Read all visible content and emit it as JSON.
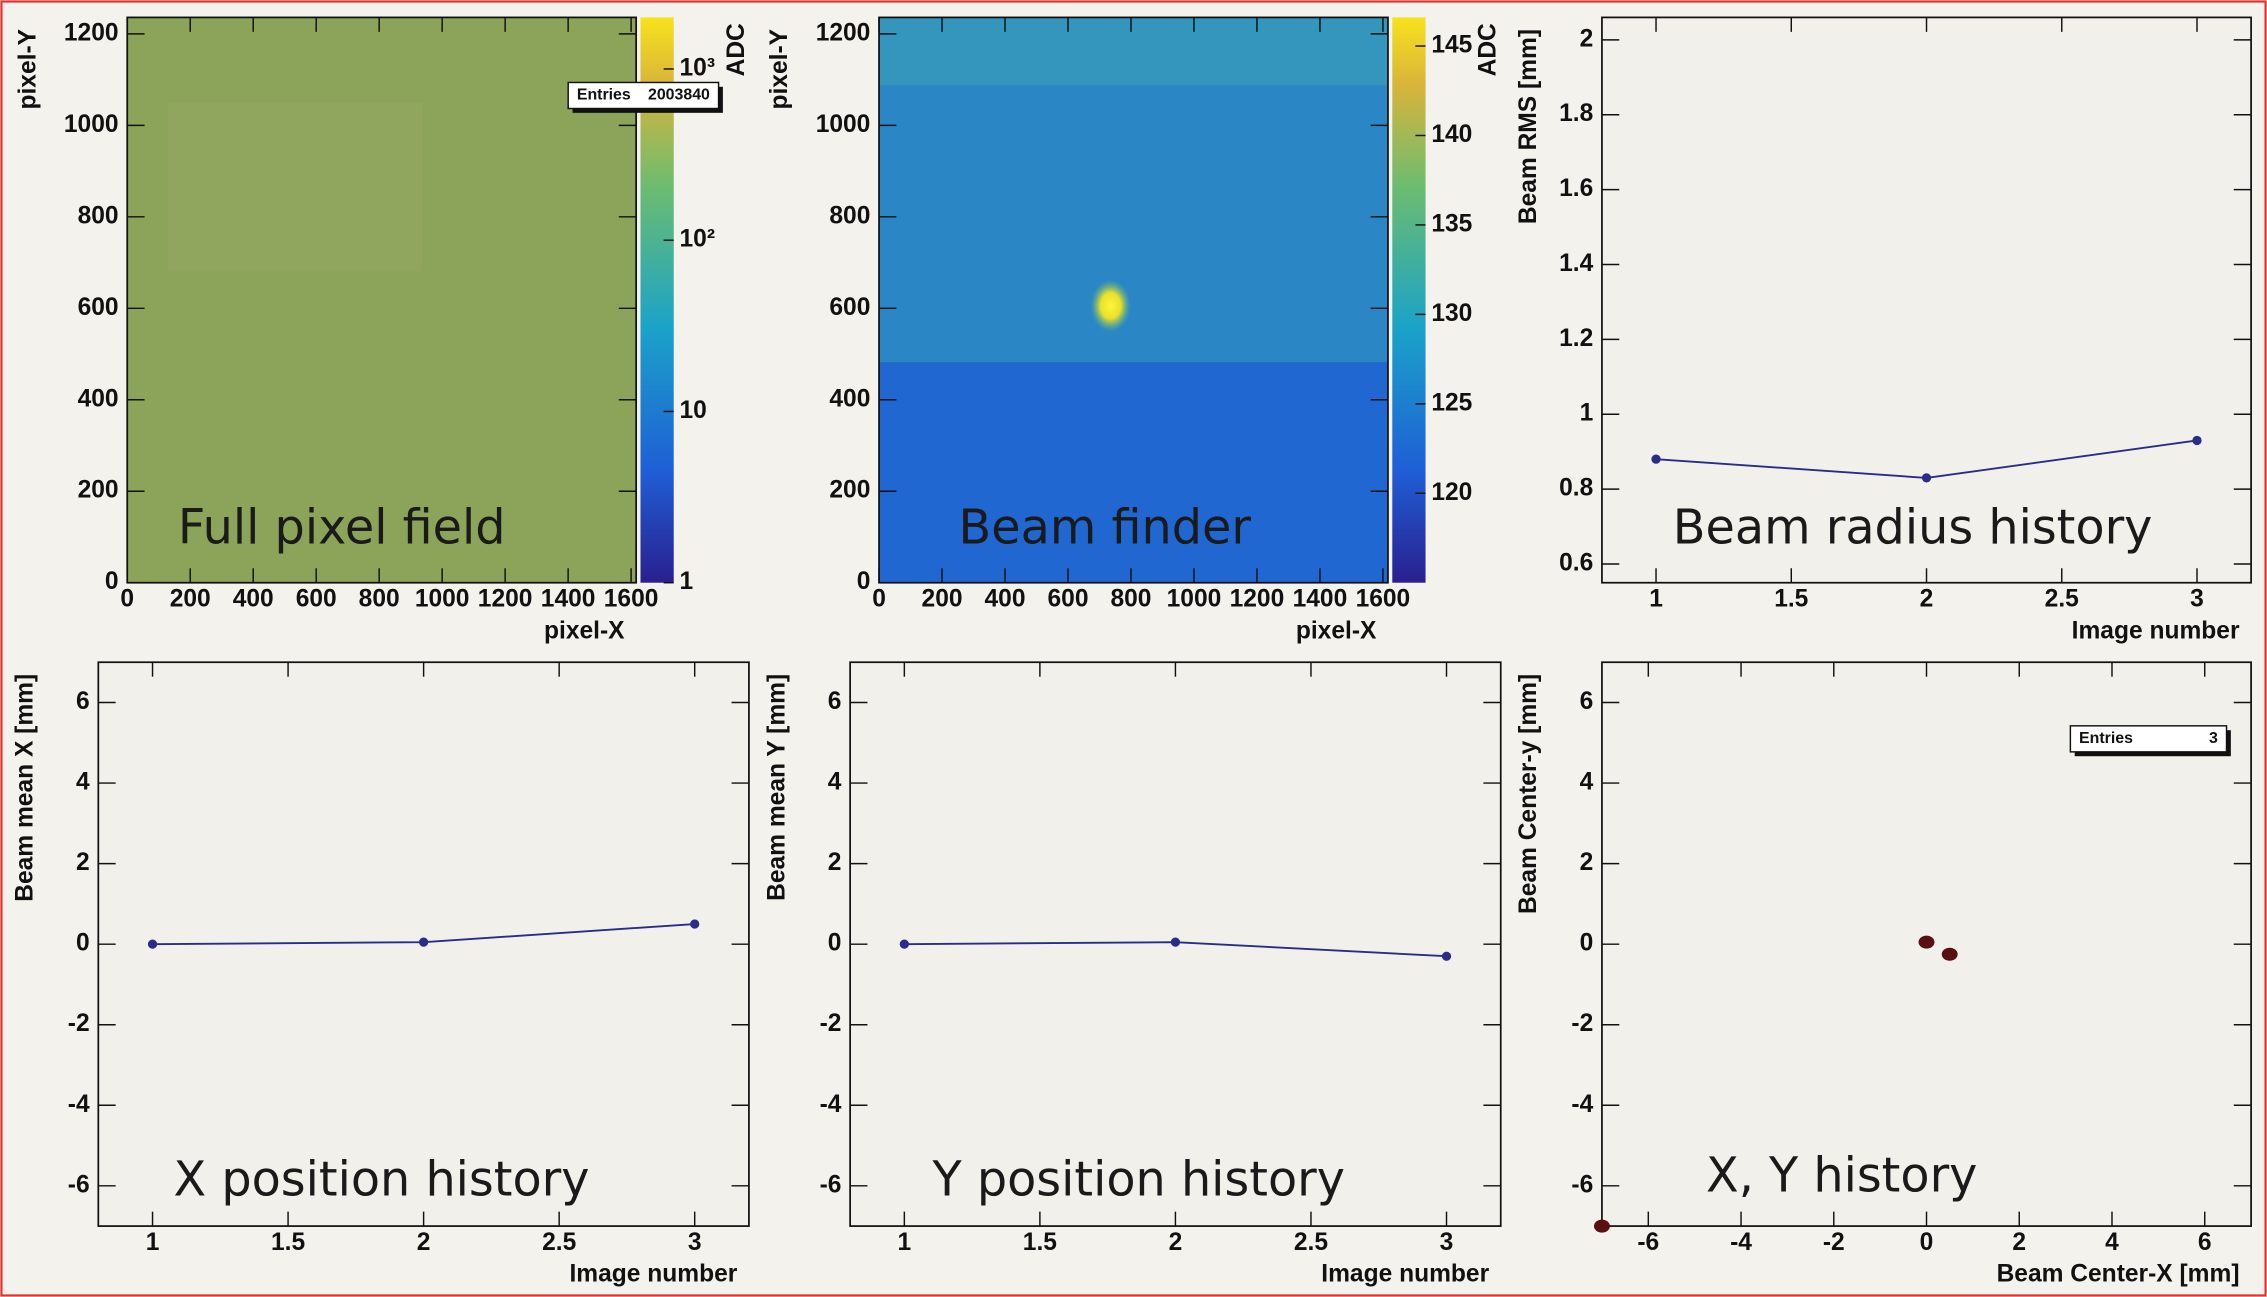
{
  "chart_data": [
    {
      "type": "heatmap",
      "annotation": "Full pixel field",
      "x_label": "pixel-X",
      "y_label": "pixel-Y",
      "z_label": "ADC",
      "xlim": [
        0,
        1616
      ],
      "ylim": [
        0,
        1236
      ],
      "xticks": [
        0,
        200,
        400,
        600,
        800,
        1000,
        1200,
        1400,
        1600
      ],
      "yticks": [
        0,
        200,
        400,
        600,
        800,
        1000,
        1200
      ],
      "zlim": [
        1,
        2000
      ],
      "zlog": true,
      "zticks": [
        1,
        10,
        {
          "value": 100,
          "label": "10²"
        },
        {
          "value": 1000,
          "label": "10³"
        }
      ],
      "stats": {
        "label": "Entries",
        "value": 2003840
      },
      "color": "#8ca35a"
    },
    {
      "type": "heatmap",
      "annotation": "Beam finder",
      "x_label": "pixel-X",
      "y_label": "pixel-Y",
      "z_label": "ADC",
      "xlim": [
        0,
        1616
      ],
      "ylim": [
        0,
        1236
      ],
      "xticks": [
        0,
        200,
        400,
        600,
        800,
        1000,
        1200,
        1400,
        1600
      ],
      "yticks": [
        0,
        200,
        400,
        600,
        800,
        1000,
        1200
      ],
      "zlim": [
        115,
        146.6
      ],
      "zlog": false,
      "zticks": [
        120,
        125,
        130,
        135,
        140,
        145
      ],
      "color": "#2b86c6"
    },
    {
      "type": "line",
      "annotation": "Beam radius history",
      "x_label": "Image number",
      "y_label": "Beam RMS [mm]",
      "x": [
        1,
        2,
        3
      ],
      "values": [
        0.88,
        0.83,
        0.93
      ],
      "color": "#2b2b8a",
      "xlim": [
        0.8,
        3.2
      ],
      "xticks": [
        1,
        1.5,
        2,
        2.5,
        3
      ],
      "ylim": [
        0.55,
        2.06
      ],
      "yticks": [
        0.6,
        0.8,
        1,
        1.2,
        1.4,
        1.6,
        1.8,
        2
      ]
    },
    {
      "type": "line",
      "annotation": "X position history",
      "x_label": "Image number",
      "y_label": "Beam mean X [mm]",
      "x": [
        1,
        2,
        3
      ],
      "values": [
        0,
        0.05,
        0.5
      ],
      "color": "#2b2b8a",
      "xlim": [
        0.8,
        3.2
      ],
      "xticks": [
        1,
        1.5,
        2,
        2.5,
        3
      ],
      "ylim": [
        -7,
        7
      ],
      "yticks": [
        -6,
        -4,
        -2,
        0,
        2,
        4,
        6
      ]
    },
    {
      "type": "line",
      "annotation": "Y position history",
      "x_label": "Image number",
      "y_label": "Beam mean Y [mm]",
      "x": [
        1,
        2,
        3
      ],
      "values": [
        0,
        0.05,
        -0.3
      ],
      "color": "#2b2b8a",
      "xlim": [
        0.8,
        3.2
      ],
      "xticks": [
        1,
        1.5,
        2,
        2.5,
        3
      ],
      "ylim": [
        -7,
        7
      ],
      "yticks": [
        -6,
        -4,
        -2,
        0,
        2,
        4,
        6
      ]
    },
    {
      "type": "scatter",
      "annotation": "X, Y history",
      "x_label": "Beam Center-X [mm]",
      "y_label": "Beam Center-y [mm]",
      "x": [
        0,
        0.5,
        -7
      ],
      "values": [
        0.05,
        -0.25,
        -7
      ],
      "color": "#5a0f10",
      "stats": {
        "label": "Entries",
        "value": 3
      },
      "xlim": [
        -7,
        7
      ],
      "xticks": [
        -6,
        -4,
        -2,
        0,
        2,
        4,
        6
      ],
      "ylim": [
        -7,
        7
      ],
      "yticks": [
        -6,
        -4,
        -2,
        0,
        2,
        4,
        6
      ]
    }
  ]
}
